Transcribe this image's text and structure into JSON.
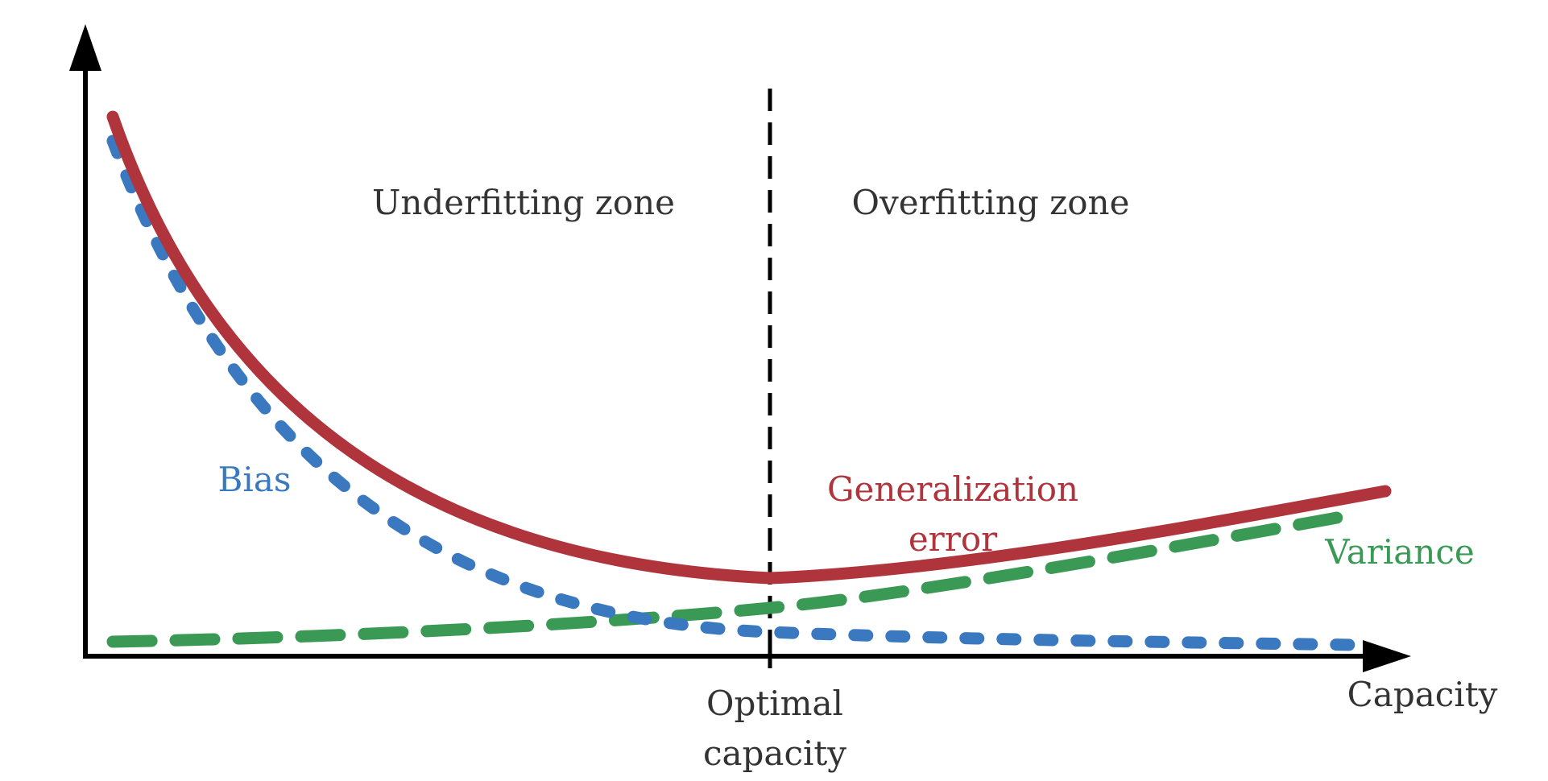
{
  "diagram": {
    "x_axis_label": "Capacity",
    "optimal_label_line1": "Optimal",
    "optimal_label_line2": "capacity",
    "underfitting_label": "Underfitting zone",
    "overfitting_label": "Overfitting zone",
    "bias_label": "Bias",
    "generalization_label_line1": "Generalization",
    "generalization_label_line2": "error",
    "variance_label": "Variance"
  },
  "colors": {
    "axis": "#000000",
    "text": "#333333",
    "generalization": "#b0343c",
    "bias": "#3a78c0",
    "variance": "#3a9a55"
  }
}
